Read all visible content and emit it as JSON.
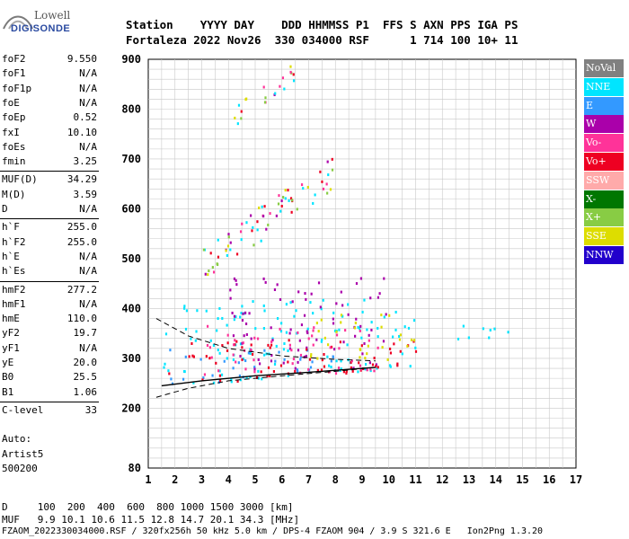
{
  "logo": {
    "line1": "Lowell",
    "line2": "DIGISONDE"
  },
  "header": {
    "line1": "Station    YYYY DAY    DDD HHMMSS P1  FFS S AXN PPS IGA PS",
    "line2": "Fortaleza 2022 Nov26  330 034000 RSF      1 714 100 10+ 11"
  },
  "params": [
    {
      "name": "foF2",
      "value": "9.550"
    },
    {
      "name": "foF1",
      "value": "N/A"
    },
    {
      "name": "foF1p",
      "value": "N/A"
    },
    {
      "name": "foE",
      "value": "N/A"
    },
    {
      "name": "foEp",
      "value": "0.52"
    },
    {
      "name": "fxI",
      "value": "10.10"
    },
    {
      "name": "foEs",
      "value": "N/A"
    },
    {
      "name": "fmin",
      "value": "3.25"
    },
    {
      "name": "MUF(D)",
      "value": "34.29"
    },
    {
      "name": "M(D)",
      "value": "3.59"
    },
    {
      "name": "D",
      "value": "N/A"
    },
    {
      "name": "h`F",
      "value": "255.0"
    },
    {
      "name": "h`F2",
      "value": "255.0"
    },
    {
      "name": "h`E",
      "value": "N/A"
    },
    {
      "name": "h`Es",
      "value": "N/A"
    },
    {
      "name": "hmF2",
      "value": "277.2"
    },
    {
      "name": "hmF1",
      "value": "N/A"
    },
    {
      "name": "hmE",
      "value": "110.0"
    },
    {
      "name": "yF2",
      "value": "19.7"
    },
    {
      "name": "yF1",
      "value": "N/A"
    },
    {
      "name": "yE",
      "value": "20.0"
    },
    {
      "name": "B0",
      "value": "25.5"
    },
    {
      "name": "B1",
      "value": "1.06"
    },
    {
      "name": "C-level",
      "value": "33"
    }
  ],
  "auto": {
    "line1": "Auto:",
    "line2": "Artist5",
    "line3": "500200"
  },
  "legend": [
    {
      "label": "NoVal",
      "color": "#808080",
      "text_color": "#ffffff"
    },
    {
      "label": "NNE",
      "color": "#00e5ff",
      "text_color": "#ffffff"
    },
    {
      "label": "E",
      "color": "#3399ff",
      "text_color": "#ffffff"
    },
    {
      "label": "W",
      "color": "#aa00aa",
      "text_color": "#ffffff"
    },
    {
      "label": "Vo-",
      "color": "#ff3399",
      "text_color": "#ffffff"
    },
    {
      "label": "Vo+",
      "color": "#ee0022",
      "text_color": "#ffffff"
    },
    {
      "label": "SSW",
      "color": "#ffaaaa",
      "text_color": "#ffffff"
    },
    {
      "label": "X-",
      "color": "#007700",
      "text_color": "#ffffff"
    },
    {
      "label": "X+",
      "color": "#88cc44",
      "text_color": "#ffffff"
    },
    {
      "label": "SSE",
      "color": "#dddd00",
      "text_color": "#ffffff"
    },
    {
      "label": "NNW",
      "color": "#2200cc",
      "text_color": "#ffffff"
    }
  ],
  "footer": {
    "line1": "D     100  200  400  600  800 1000 1500 3000 [km]",
    "line2": "MUF   9.9 10.1 10.6 11.5 12.8 14.7 20.1 34.3 [MHz]",
    "line3": "FZAOM_2022330034000.RSF / 320fx256h 50 kHz 5.0 km / DPS-4 FZAOM 904 / 3.9 S 321.6 E   Ion2Png 1.3.20"
  },
  "chart_data": {
    "type": "scatter",
    "xlim": [
      1,
      17
    ],
    "ylim": [
      80,
      900
    ],
    "x_ticks": [
      "1",
      "2",
      "3",
      "4",
      "5",
      "6",
      "7",
      "8",
      "9",
      "10",
      "11",
      "12",
      "13",
      "14",
      "15",
      "16",
      "17"
    ],
    "y_ticks": [
      "80",
      "200",
      "300",
      "400",
      "500",
      "600",
      "700",
      "800",
      "900"
    ],
    "grid": true,
    "legend_position": "right",
    "clusters": [
      {
        "name": "NNE",
        "x_range": [
          1.5,
          11
        ],
        "y_range": [
          230,
          420
        ]
      },
      {
        "name": "NNE",
        "x_range": [
          12,
          15
        ],
        "y_range": [
          340,
          375
        ]
      },
      {
        "name": "E",
        "x_range": [
          1.5,
          8
        ],
        "y_range": [
          250,
          320
        ]
      },
      {
        "name": "W",
        "x_range": [
          4,
          10
        ],
        "y_range": [
          280,
          470
        ]
      },
      {
        "name": "Vo+",
        "x_range": [
          1.5,
          11
        ],
        "y_range": [
          240,
          340
        ]
      },
      {
        "name": "Vo-",
        "x_range": [
          3,
          10
        ],
        "y_range": [
          270,
          370
        ]
      },
      {
        "name": "SSE",
        "x_range": [
          7,
          11
        ],
        "y_range": [
          300,
          400
        ]
      },
      {
        "name": "Vo-",
        "x_range": [
          3,
          8
        ],
        "y_range": [
          490,
          690
        ]
      },
      {
        "name": "W",
        "x_range": [
          4,
          6.5
        ],
        "y_range": [
          780,
          900
        ]
      }
    ],
    "profile_curves": [
      {
        "style": "solid",
        "points": [
          [
            1.5,
            245
          ],
          [
            3,
            255
          ],
          [
            5,
            265
          ],
          [
            7,
            272
          ],
          [
            9.5,
            282
          ]
        ]
      },
      {
        "style": "dashed",
        "points": [
          [
            1.3,
            380
          ],
          [
            2.5,
            345
          ],
          [
            4,
            320
          ],
          [
            6,
            305
          ],
          [
            8,
            298
          ],
          [
            9.5,
            295
          ]
        ]
      },
      {
        "style": "dashed",
        "points": [
          [
            1.3,
            222
          ],
          [
            2.5,
            240
          ],
          [
            4,
            255
          ],
          [
            6,
            265
          ],
          [
            8,
            274
          ],
          [
            9.5,
            282
          ]
        ]
      }
    ]
  }
}
